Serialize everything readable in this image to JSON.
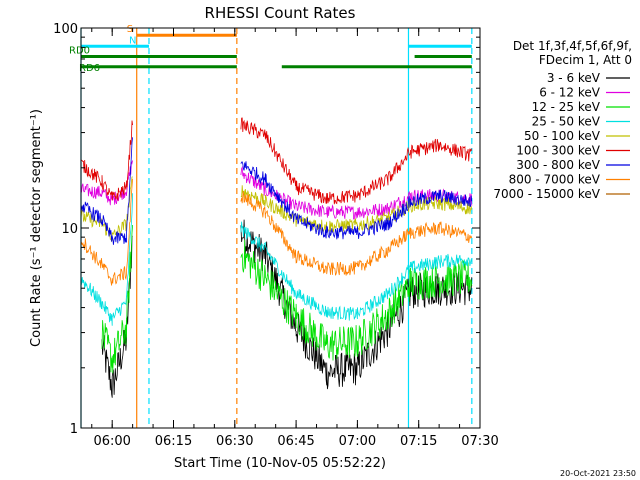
{
  "chart_data": {
    "type": "line",
    "title": "RHESSI Count Rates",
    "xlabel": "Start Time (10-Nov-05 05:52:22)",
    "ylabel": "Count Rate (s⁻¹ detector segment⁻¹)",
    "yscale": "log",
    "ylim": [
      1,
      100
    ],
    "xlim": [
      "05:52:22",
      "07:30:00"
    ],
    "x_ticks": [
      "06:00",
      "06:15",
      "06:30",
      "06:45",
      "07:00",
      "07:15",
      "07:30"
    ],
    "y_ticks": [
      "1",
      "10",
      "100"
    ],
    "legend_header": [
      "Det 1f,3f,4f,5f,6f,9f,",
      "FDecim 1, Att 0"
    ],
    "legend_position": "right",
    "footer_date": "20-Oct-2021 23:50",
    "series": [
      {
        "name": "3 - 6 keV",
        "color": "#000000",
        "points": [
          [
            "05:52:22",
            null
          ],
          [
            "05:57:30",
            2.6
          ],
          [
            "06:00:00",
            1.6
          ],
          [
            "06:03:30",
            2.8
          ],
          [
            "06:05:00",
            9.5
          ],
          [
            "06:31:00",
            null
          ],
          [
            "06:31:30",
            9.5
          ],
          [
            "06:37:30",
            7.2
          ],
          [
            "06:45:00",
            3.2
          ],
          [
            "06:52:30",
            1.9
          ],
          [
            "07:00:00",
            2.0
          ],
          [
            "07:07:30",
            3.1
          ],
          [
            "07:13:00",
            4.8
          ],
          [
            "07:20:00",
            5.0
          ],
          [
            "07:28:00",
            5.0
          ]
        ]
      },
      {
        "name": "6 - 12 keV",
        "color": "#e000e0",
        "points": [
          [
            "05:52:22",
            15.5
          ],
          [
            "05:57:30",
            15.0
          ],
          [
            "06:00:00",
            13.8
          ],
          [
            "06:03:30",
            15.5
          ],
          [
            "06:05:00",
            22.0
          ],
          [
            "06:31:00",
            null
          ],
          [
            "06:31:30",
            19.0
          ],
          [
            "06:37:30",
            15.5
          ],
          [
            "06:45:00",
            12.8
          ],
          [
            "06:52:30",
            12.0
          ],
          [
            "07:00:00",
            12.0
          ],
          [
            "07:07:30",
            12.5
          ],
          [
            "07:13:00",
            14.5
          ],
          [
            "07:20:00",
            14.5
          ],
          [
            "07:28:00",
            14.0
          ]
        ]
      },
      {
        "name": "12 - 25 keV",
        "color": "#00e000",
        "points": [
          [
            "05:52:22",
            null
          ],
          [
            "05:57:30",
            3.0
          ],
          [
            "06:00:00",
            2.2
          ],
          [
            "06:03:30",
            3.2
          ],
          [
            "06:05:00",
            10.0
          ],
          [
            "06:31:00",
            null
          ],
          [
            "06:31:30",
            7.5
          ],
          [
            "06:37:30",
            5.6
          ],
          [
            "06:45:00",
            3.6
          ],
          [
            "06:52:30",
            2.6
          ],
          [
            "07:00:00",
            2.7
          ],
          [
            "07:07:30",
            3.7
          ],
          [
            "07:13:00",
            5.3
          ],
          [
            "07:20:00",
            5.5
          ],
          [
            "07:28:00",
            5.6
          ]
        ]
      },
      {
        "name": "25 - 50 keV",
        "color": "#00e0e0",
        "points": [
          [
            "05:52:22",
            5.6
          ],
          [
            "05:57:30",
            4.2
          ],
          [
            "06:00:00",
            3.5
          ],
          [
            "06:03:30",
            4.3
          ],
          [
            "06:05:00",
            14.0
          ],
          [
            "06:31:00",
            null
          ],
          [
            "06:31:30",
            10.0
          ],
          [
            "06:37:30",
            7.8
          ],
          [
            "06:45:00",
            4.7
          ],
          [
            "06:52:30",
            3.8
          ],
          [
            "07:00:00",
            3.7
          ],
          [
            "07:07:30",
            4.7
          ],
          [
            "07:13:00",
            6.3
          ],
          [
            "07:20:00",
            6.8
          ],
          [
            "07:28:00",
            7.0
          ]
        ]
      },
      {
        "name": "50 - 100 keV",
        "color": "#c0c000",
        "points": [
          [
            "05:52:22",
            11.5
          ],
          [
            "05:57:30",
            10.5
          ],
          [
            "06:00:00",
            9.0
          ],
          [
            "06:03:30",
            10.5
          ],
          [
            "06:05:00",
            18.0
          ],
          [
            "06:31:00",
            null
          ],
          [
            "06:31:30",
            15.5
          ],
          [
            "06:37:30",
            13.5
          ],
          [
            "06:45:00",
            11.0
          ],
          [
            "06:52:30",
            10.2
          ],
          [
            "07:00:00",
            10.3
          ],
          [
            "07:07:30",
            11.2
          ],
          [
            "07:13:00",
            13.0
          ],
          [
            "07:20:00",
            13.3
          ],
          [
            "07:28:00",
            12.5
          ]
        ]
      },
      {
        "name": "100 - 300 keV",
        "color": "#e00000",
        "points": [
          [
            "05:52:22",
            21.0
          ],
          [
            "05:57:30",
            17.0
          ],
          [
            "06:00:00",
            14.0
          ],
          [
            "06:03:30",
            16.0
          ],
          [
            "06:05:00",
            35.0
          ],
          [
            "06:31:00",
            null
          ],
          [
            "06:31:30",
            33.0
          ],
          [
            "06:37:30",
            29.0
          ],
          [
            "06:45:00",
            16.0
          ],
          [
            "06:52:30",
            14.0
          ],
          [
            "07:00:00",
            14.5
          ],
          [
            "07:07:30",
            17.5
          ],
          [
            "07:13:00",
            24.0
          ],
          [
            "07:20:00",
            26.0
          ],
          [
            "07:28:00",
            23.0
          ]
        ]
      },
      {
        "name": "300 - 800 keV",
        "color": "#0000e0",
        "points": [
          [
            "05:52:22",
            13.0
          ],
          [
            "05:57:30",
            11.0
          ],
          [
            "06:00:00",
            8.8
          ],
          [
            "06:03:30",
            9.0
          ],
          [
            "06:05:00",
            28.0
          ],
          [
            "06:31:00",
            null
          ],
          [
            "06:31:30",
            21.0
          ],
          [
            "06:37:30",
            17.5
          ],
          [
            "06:45:00",
            11.0
          ],
          [
            "06:52:30",
            9.5
          ],
          [
            "07:00:00",
            9.5
          ],
          [
            "07:07:30",
            10.5
          ],
          [
            "07:13:00",
            13.5
          ],
          [
            "07:20:00",
            14.5
          ],
          [
            "07:28:00",
            13.5
          ]
        ]
      },
      {
        "name": "800 - 7000 keV",
        "color": "#ff8000",
        "points": [
          [
            "05:52:22",
            8.8
          ],
          [
            "05:57:30",
            6.5
          ],
          [
            "06:00:00",
            5.5
          ],
          [
            "06:03:30",
            6.0
          ],
          [
            "06:05:00",
            17.0
          ],
          [
            "06:31:00",
            null
          ],
          [
            "06:31:30",
            14.5
          ],
          [
            "06:37:30",
            12.0
          ],
          [
            "06:45:00",
            7.2
          ],
          [
            "06:52:30",
            6.2
          ],
          [
            "07:00:00",
            6.3
          ],
          [
            "07:07:30",
            7.8
          ],
          [
            "07:13:00",
            9.5
          ],
          [
            "07:20:00",
            10.0
          ],
          [
            "07:28:00",
            9.0
          ]
        ]
      },
      {
        "name": "7000 - 15000 keV",
        "color": "#b06000",
        "points": []
      }
    ],
    "flags": [
      {
        "label": "S",
        "color": "#ff8000",
        "start": "06:06:00",
        "end": "06:30:30",
        "value": 92,
        "gaps": []
      },
      {
        "label": "N",
        "color": "#00e0ff",
        "start": "05:52:22",
        "end": "06:09:00",
        "value": 81,
        "gaps": [
          [
            "06:09:00",
            "07:12:30"
          ]
        ],
        "resume": "07:12:30",
        "resume_end": "07:28:00"
      },
      {
        "label": "RD0",
        "color": "#008000",
        "start": "05:52:22",
        "end": "06:30:30",
        "value": 72,
        "gaps": [
          [
            "06:30:30",
            "07:14:00"
          ]
        ],
        "resume": "07:14:00",
        "resume_end": "07:28:00"
      },
      {
        "label": "RD6",
        "color": "#008000",
        "start": "05:52:22",
        "end": "06:30:30",
        "value": 64,
        "gaps": [
          [
            "06:30:30",
            "06:41:30"
          ]
        ],
        "resume": "06:41:30",
        "resume_end": "07:28:00"
      }
    ],
    "vlines": [
      {
        "time": "05:52:22",
        "color": "#00e0ff",
        "style": "solid"
      },
      {
        "time": "06:06:00",
        "color": "#ff8000",
        "style": "solid"
      },
      {
        "time": "06:09:00",
        "color": "#00e0ff",
        "style": "dashed"
      },
      {
        "time": "06:30:30",
        "color": "#ff8000",
        "style": "dashed"
      },
      {
        "time": "07:12:30",
        "color": "#00e0ff",
        "style": "solid"
      },
      {
        "time": "07:28:00",
        "color": "#00e0ff",
        "style": "dashed"
      }
    ],
    "grid": false
  }
}
